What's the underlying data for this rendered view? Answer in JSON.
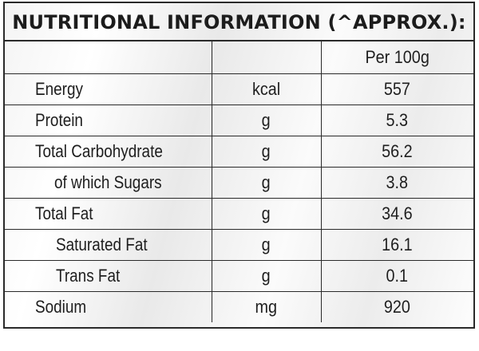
{
  "title": "NUTRITIONAL INFORMATION (^APPROX.):",
  "header": {
    "col_label": "",
    "col_unit": "",
    "col_value": "Per 100g"
  },
  "rows": [
    {
      "label": "Energy",
      "unit": "kcal",
      "value": "557"
    },
    {
      "label": "Protein",
      "unit": "g",
      "value": "5.3"
    },
    {
      "label": "Total Carbohydrate",
      "unit": "g",
      "value": "56.2"
    },
    {
      "label": "of which Sugars",
      "unit": "g",
      "value": "3.8"
    },
    {
      "label": "Total Fat",
      "unit": "g",
      "value": "34.6"
    },
    {
      "label": "Saturated Fat",
      "unit": "g",
      "value": "16.1"
    },
    {
      "label": "Trans Fat",
      "unit": "g",
      "value": "0.1"
    },
    {
      "label": "Sodium",
      "unit": "mg",
      "value": "920"
    }
  ]
}
